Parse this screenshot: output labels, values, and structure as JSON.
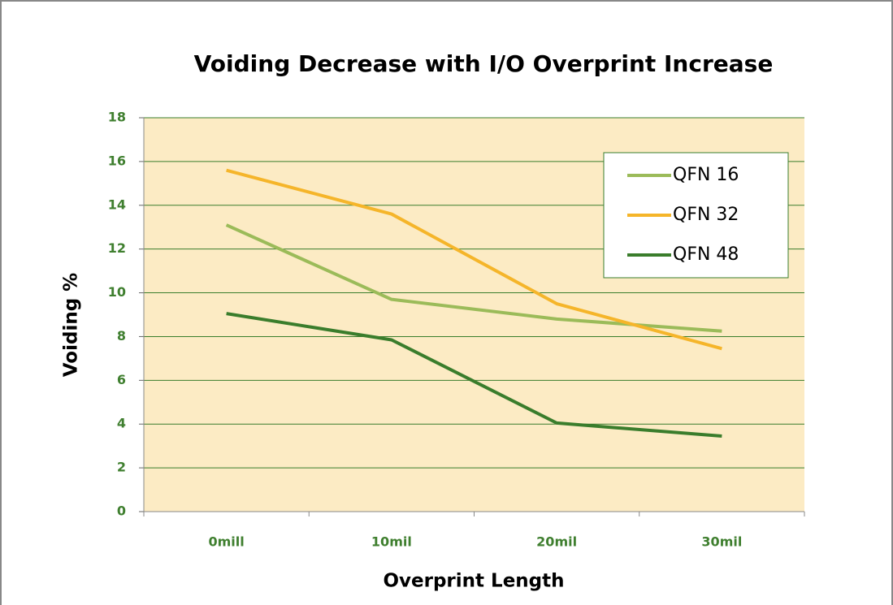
{
  "chart_data": {
    "type": "line",
    "title": "Voiding Decrease with I/O Overprint Increase",
    "xlabel": "Overprint Length",
    "ylabel": "Voiding %",
    "categories": [
      "0mill",
      "10mil",
      "20mil",
      "30mil"
    ],
    "series": [
      {
        "name": "QFN 16",
        "color": "#9bbb59",
        "values": [
          13.1,
          9.7,
          8.8,
          8.25
        ]
      },
      {
        "name": "QFN 32",
        "color": "#f5b52a",
        "values": [
          15.6,
          13.6,
          9.5,
          7.45
        ]
      },
      {
        "name": "QFN 48",
        "color": "#3a7d2c",
        "values": [
          9.05,
          7.85,
          4.05,
          3.45
        ]
      }
    ],
    "ylim": [
      0,
      18
    ],
    "yticks": [
      0,
      2,
      4,
      6,
      8,
      10,
      12,
      14,
      16,
      18
    ],
    "grid": true,
    "legend": "upper right"
  }
}
